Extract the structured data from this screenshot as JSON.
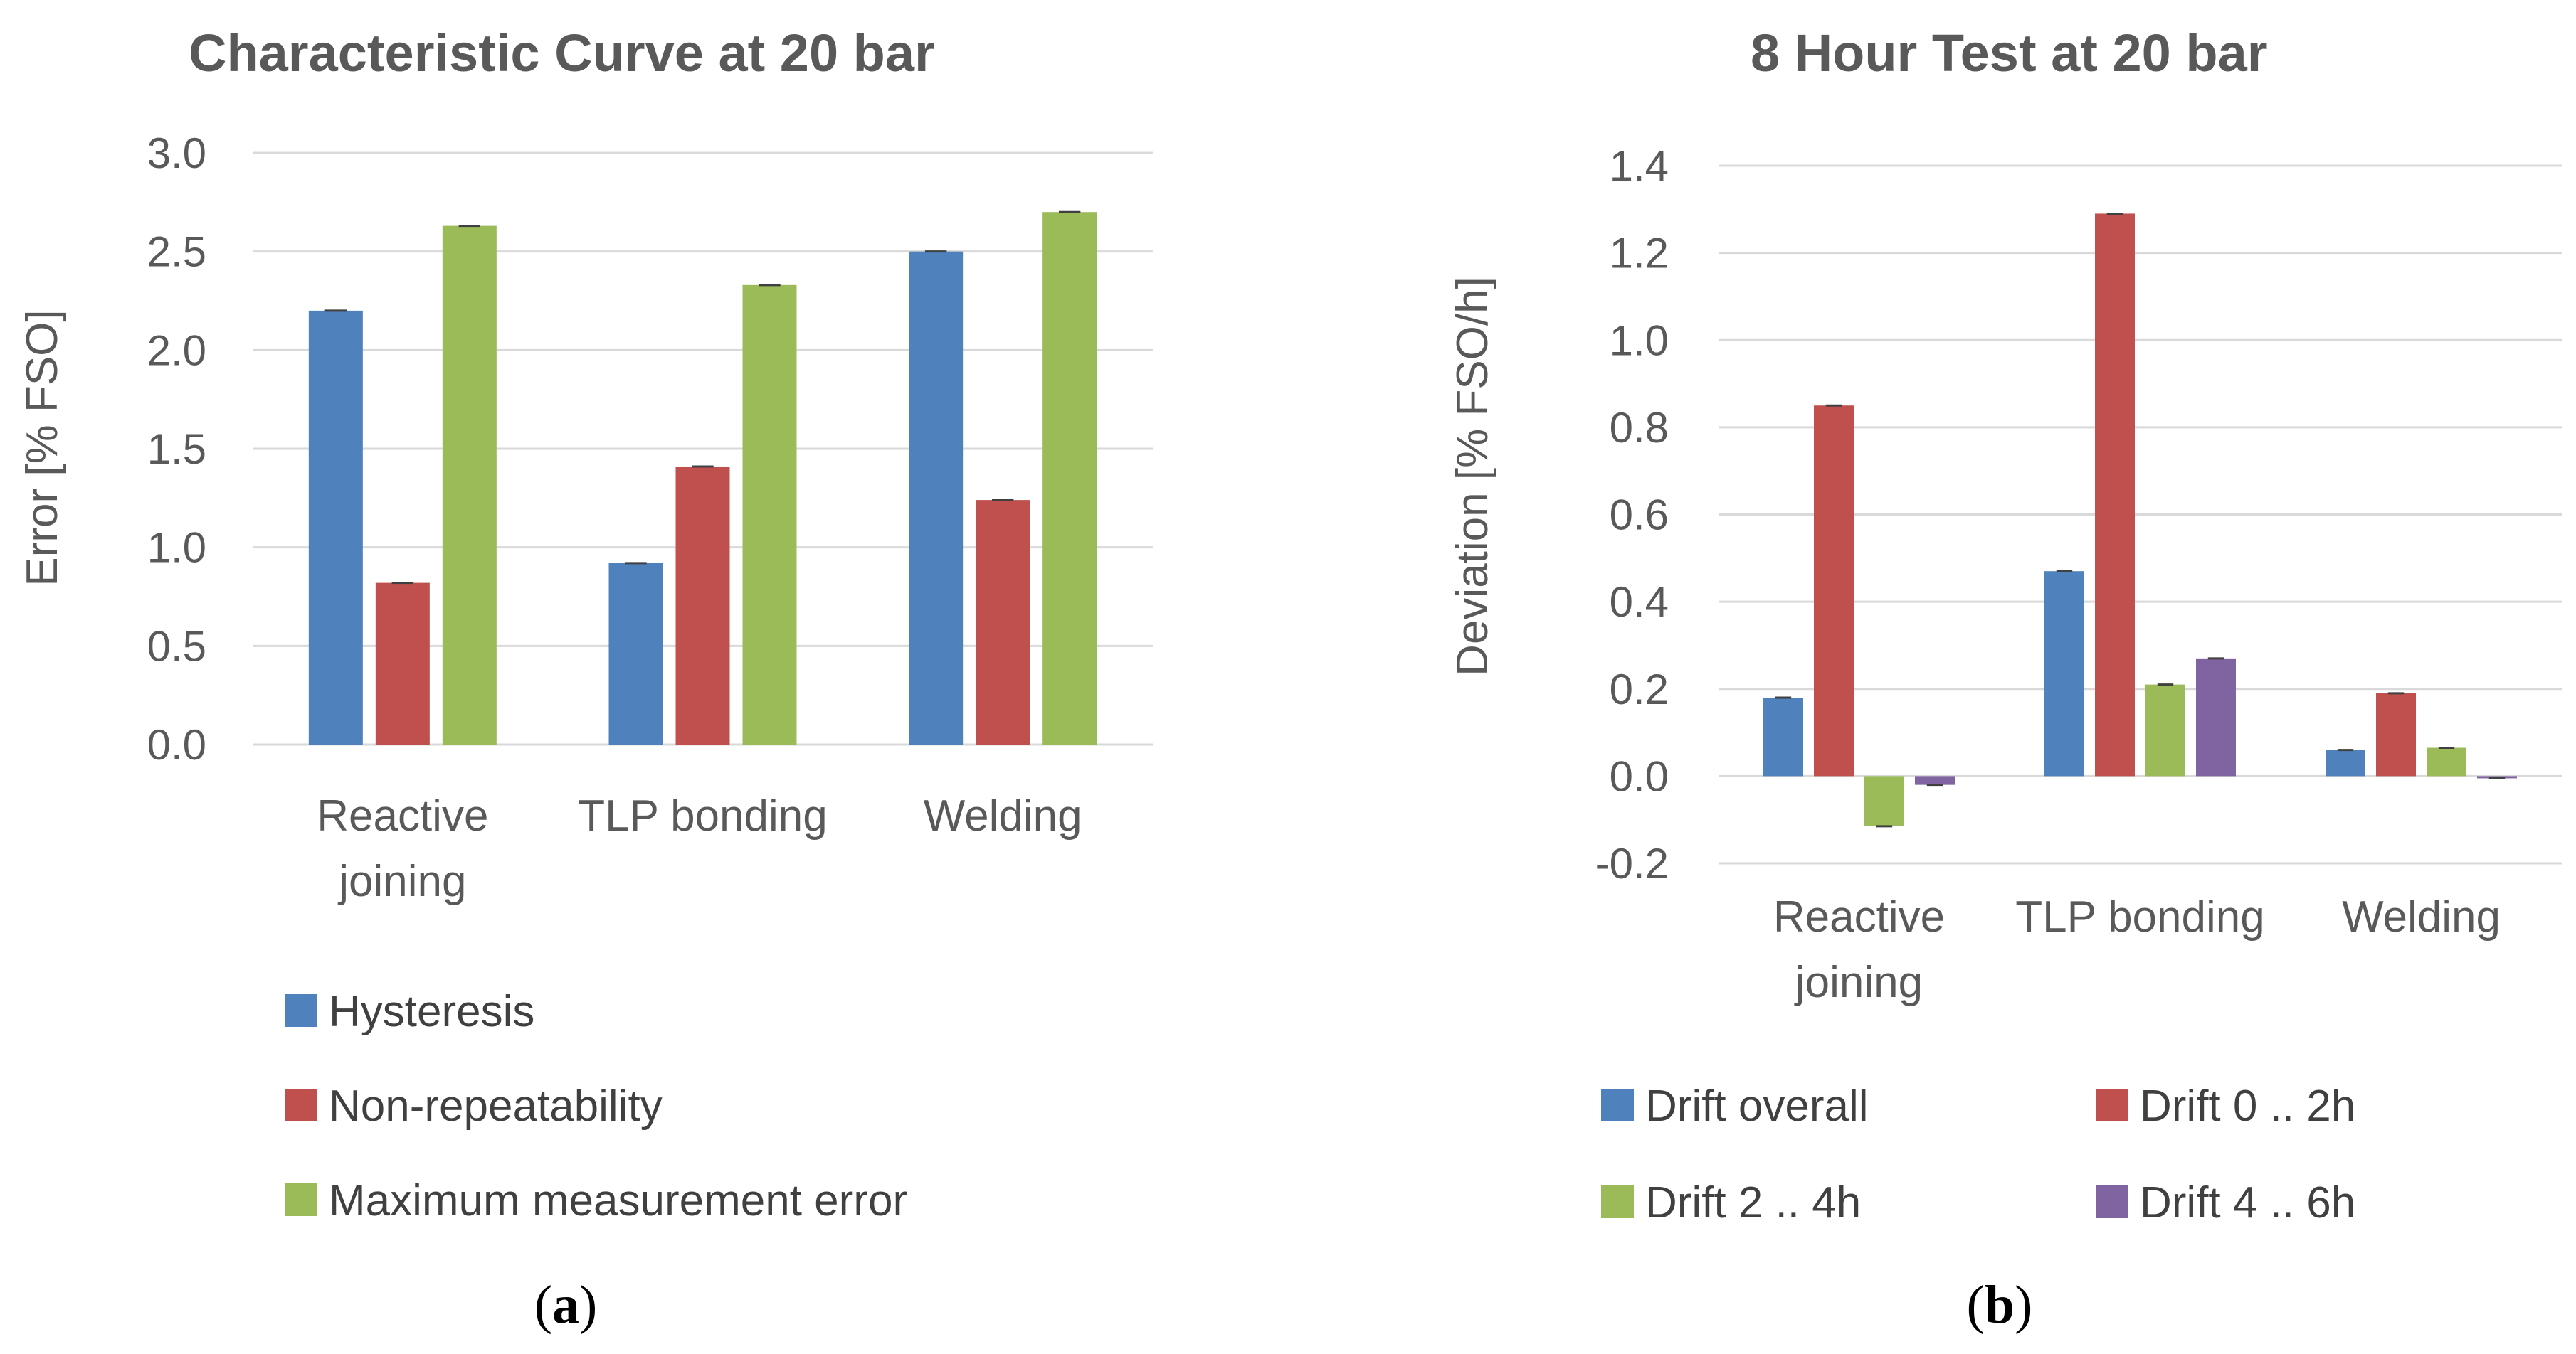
{
  "colors": {
    "blue": "#4f81bd",
    "red": "#c0504d",
    "green": "#9bbb59",
    "purple": "#8064a2",
    "text": "#595959",
    "grid": "#d9d9d9"
  },
  "chart_data": [
    {
      "type": "bar",
      "title": "Characteristic Curve at 20 bar",
      "xlabel": "",
      "ylabel": "Error [% FSO]",
      "ylim": [
        0,
        3.0
      ],
      "yticks": [
        "0.0",
        "0.5",
        "1.0",
        "1.5",
        "2.0",
        "2.5",
        "3.0"
      ],
      "categories": [
        [
          "Reactive",
          "joining"
        ],
        [
          "TLP bonding"
        ],
        [
          "Welding"
        ]
      ],
      "series": [
        {
          "name": "Hysteresis",
          "color": "#4f81bd",
          "values": [
            2.2,
            0.92,
            2.5
          ]
        },
        {
          "name": "Non-repeatability",
          "color": "#c0504d",
          "values": [
            0.82,
            1.41,
            1.24
          ]
        },
        {
          "name": "Maximum measurement error",
          "color": "#9bbb59",
          "values": [
            2.63,
            2.33,
            2.7
          ]
        }
      ],
      "legend": "bottom",
      "panel_label": {
        "open": "(",
        "letter": "a",
        "close": ")"
      }
    },
    {
      "type": "bar",
      "title": "8 Hour Test at 20 bar",
      "xlabel": "",
      "ylabel": "Deviation [% FSO/h]",
      "ylim": [
        -0.2,
        1.4
      ],
      "yticks": [
        "-0.2",
        "0.0",
        "0.2",
        "0.4",
        "0.6",
        "0.8",
        "1.0",
        "1.2",
        "1.4"
      ],
      "categories": [
        [
          "Reactive",
          "joining"
        ],
        [
          "TLP bonding"
        ],
        [
          "Welding"
        ]
      ],
      "series": [
        {
          "name": "Drift overall",
          "color": "#4f81bd",
          "values": [
            0.18,
            0.47,
            0.06
          ]
        },
        {
          "name": "Drift 0 .. 2h",
          "color": "#c0504d",
          "values": [
            0.85,
            1.29,
            0.19
          ]
        },
        {
          "name": "Drift 2 .. 4h",
          "color": "#9bbb59",
          "values": [
            -0.115,
            0.21,
            0.065
          ]
        },
        {
          "name": "Drift 4 .. 6h",
          "color": "#8064a2",
          "values": [
            -0.02,
            0.27,
            -0.005
          ]
        }
      ],
      "legend": "bottom",
      "panel_label": {
        "open": "(",
        "letter": "b",
        "close": ")"
      }
    }
  ]
}
